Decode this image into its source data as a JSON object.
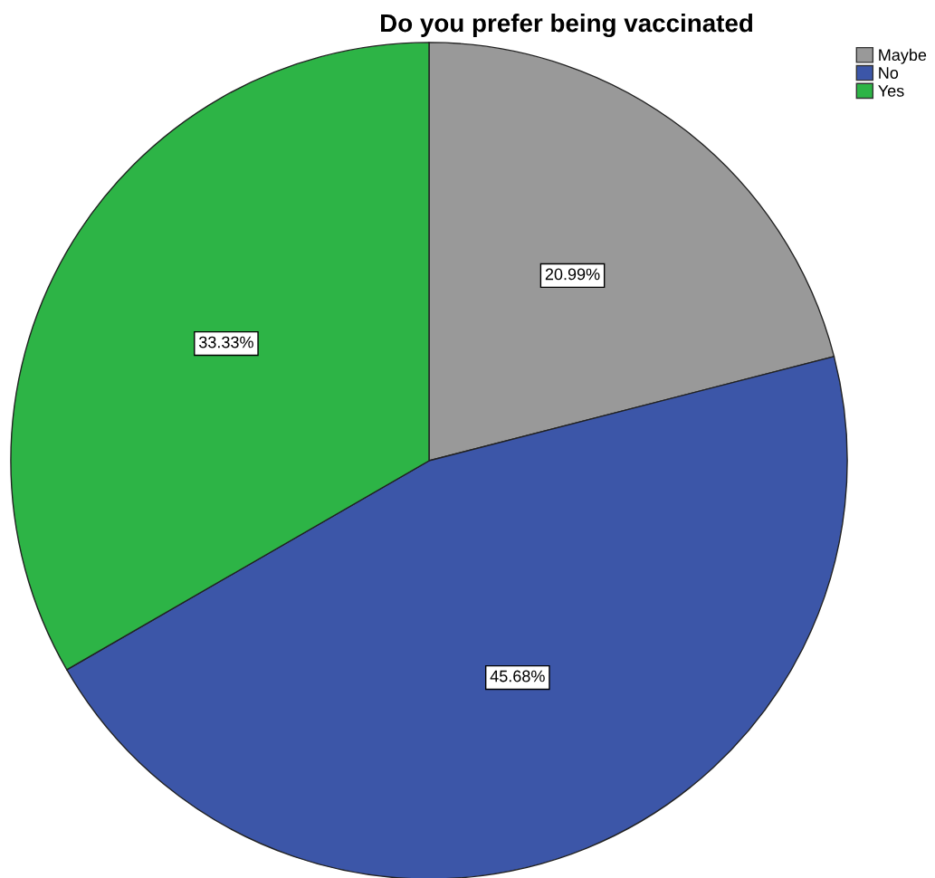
{
  "chart_data": {
    "type": "pie",
    "title": "Do you prefer being vaccinated",
    "categories": [
      "Maybe",
      "No",
      "Yes"
    ],
    "values": [
      20.99,
      45.68,
      33.33
    ],
    "colors": [
      "#999999",
      "#3c56a8",
      "#2db446"
    ],
    "value_labels": [
      "20.99%",
      "45.68%",
      "33.33%"
    ],
    "legend": "top right"
  }
}
